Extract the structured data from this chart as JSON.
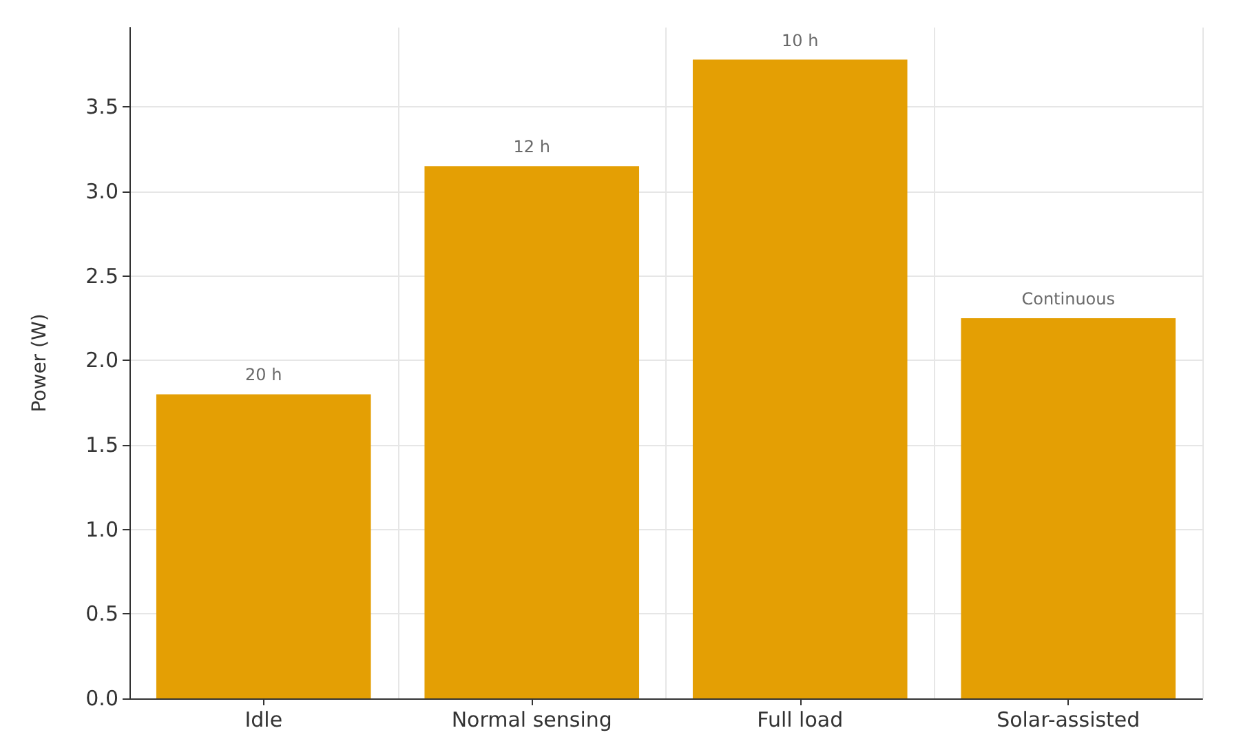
{
  "chart_data": {
    "type": "bar",
    "ylabel": "Power (W)",
    "categories": [
      "Idle",
      "Normal sensing",
      "Full load",
      "Solar-assisted"
    ],
    "values": [
      1.8,
      3.15,
      3.78,
      2.25
    ],
    "annotations": [
      {
        "text": "20 h",
        "x": "Idle",
        "y": 1.8
      },
      {
        "text": "12 h",
        "x": "Normal sensing",
        "y": 3.15
      },
      {
        "text": "10 h",
        "x": "Full load",
        "y": 3.78
      },
      {
        "text": "Continuous",
        "x": "Solar-assisted",
        "y": 2.25
      }
    ],
    "color": "#e49f04",
    "ylim": [
      0,
      3.97
    ],
    "yticks": [
      {
        "value": 0,
        "label": "0.0"
      },
      0.5,
      {
        "value": 1,
        "label": "1.0"
      },
      1.5,
      {
        "value": 2,
        "label": "2.0"
      },
      2.5,
      {
        "value": 3,
        "label": "3.0"
      },
      3.5
    ],
    "grid": true
  }
}
